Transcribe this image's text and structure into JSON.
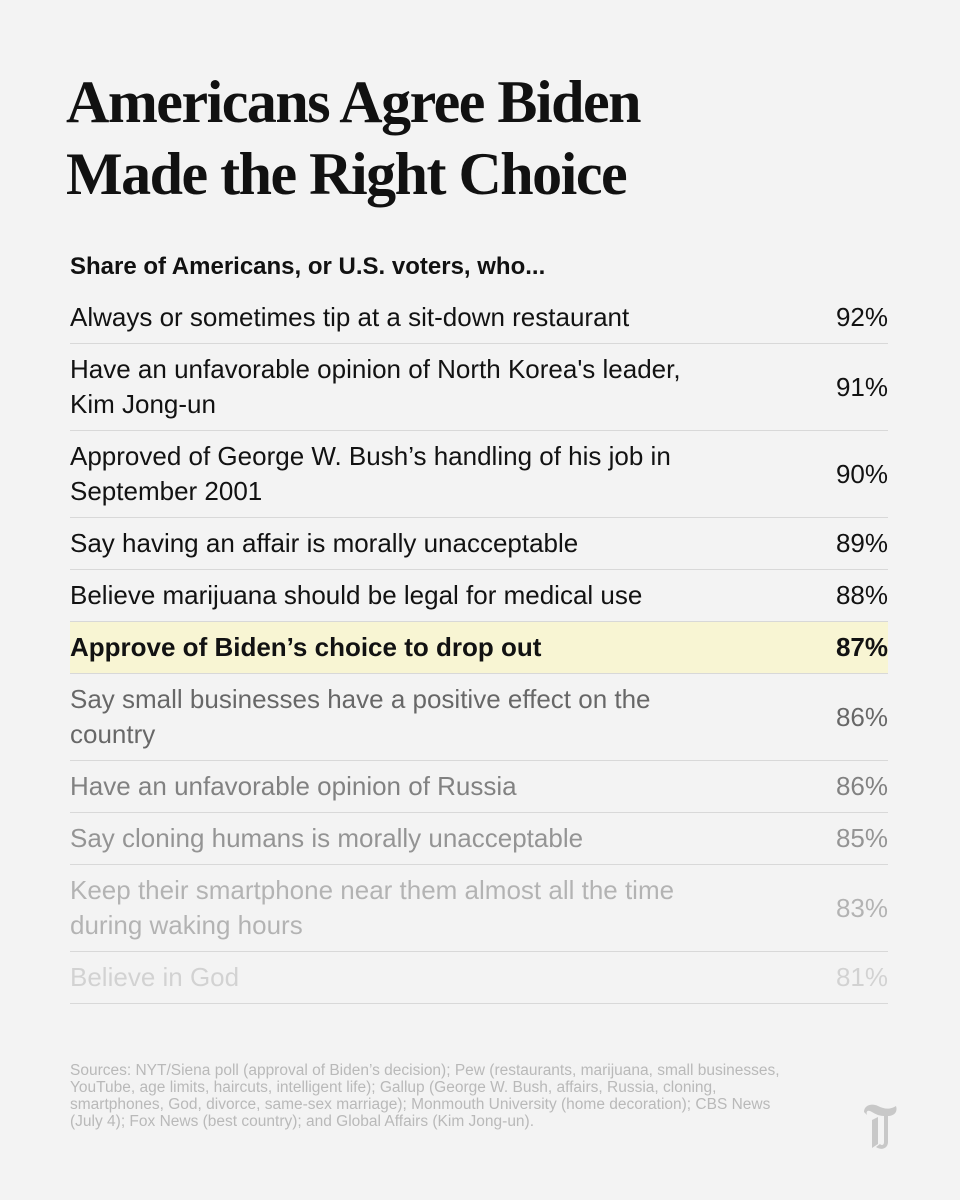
{
  "header": {
    "title_lines": [
      "Americans Agree Biden",
      "Made the Right Choice"
    ],
    "subtitle": "Share of Americans, or U.S. voters, who..."
  },
  "table": {
    "rows": [
      {
        "label": "Always or sometimes tip at a sit-down restaurant",
        "value": "92%"
      },
      {
        "label": "Have an unfavorable opinion of North Korea's leader, Kim Jong-un",
        "value": "91%"
      },
      {
        "label": "Approved of George W. Bush’s handling of his job in September 2001",
        "value": "90%"
      },
      {
        "label": "Say having an affair is morally unacceptable",
        "value": "89%"
      },
      {
        "label": "Believe marijuana should be legal for medical use",
        "value": "88%"
      },
      {
        "label": "Approve of Biden’s choice to drop out",
        "value": "87%",
        "highlighted": true
      },
      {
        "label": "Say small businesses have a positive effect on the country",
        "value": "86%"
      },
      {
        "label": "Have an unfavorable opinion of Russia",
        "value": "86%"
      },
      {
        "label": "Say cloning humans is morally unacceptable",
        "value": "85%"
      },
      {
        "label": "Keep their smartphone near them almost all the time during waking hours",
        "value": "83%"
      },
      {
        "label": "Believe in God",
        "value": "81%"
      }
    ]
  },
  "footer": {
    "sources": "Sources: NYT/Siena poll (approval of Biden’s decision); Pew (restaurants, marijuana, small businesses, YouTube, age limits, haircuts, intelligent life); Gallup (George W. Bush, affairs, Russia, cloning, smartphones, God, divorce, same-sex marriage); Monmouth University (home decoration); CBS News (July 4); Fox News (best country); and Global Affairs (Kim Jong-un)."
  }
}
